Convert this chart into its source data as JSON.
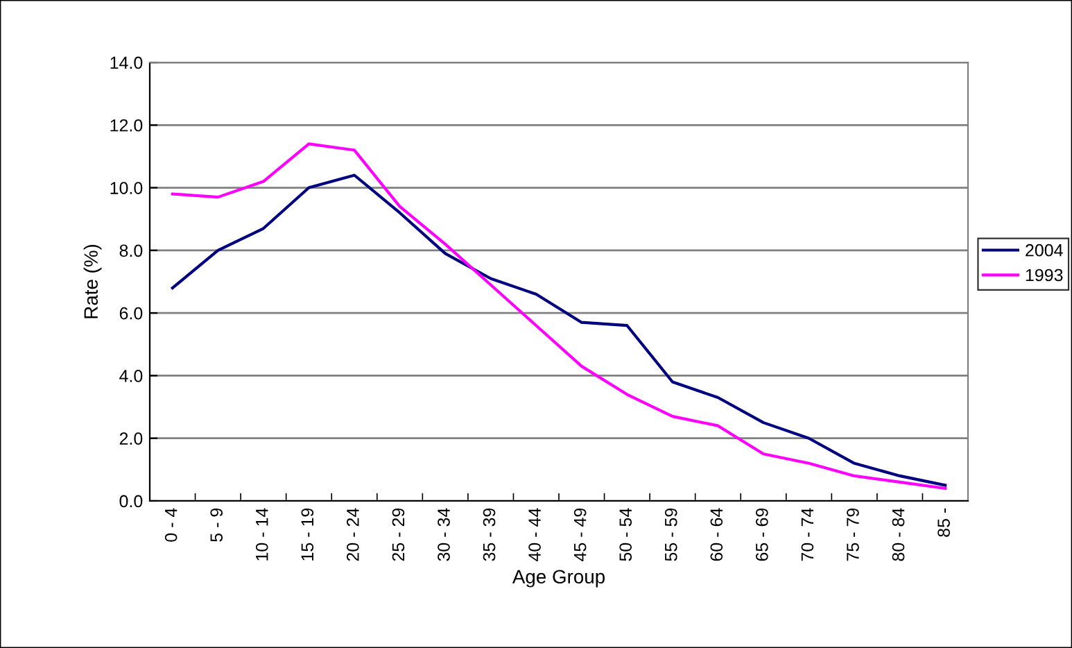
{
  "chart_data": {
    "type": "line",
    "xlabel": "Age Group",
    "ylabel": "Rate (%)",
    "categories": [
      "0 - 4",
      "5 - 9",
      "10 - 14",
      "15 - 19",
      "20 - 24",
      "25 - 29",
      "30 - 34",
      "35 - 39",
      "40 - 44",
      "45 - 49",
      "50 - 54",
      "55 - 59",
      "60 - 64",
      "65 - 69",
      "70 - 74",
      "75 - 79",
      "80 - 84",
      "85 -"
    ],
    "series": [
      {
        "name": "2004",
        "color": "#000080",
        "values": [
          6.8,
          8.0,
          8.7,
          10.0,
          10.4,
          9.2,
          7.9,
          7.1,
          6.6,
          5.7,
          5.6,
          3.8,
          3.3,
          2.5,
          2.0,
          1.2,
          0.8,
          0.5
        ]
      },
      {
        "name": "1993",
        "color": "#ff00ff",
        "values": [
          9.8,
          9.7,
          10.2,
          11.4,
          11.2,
          9.4,
          8.2,
          6.9,
          5.6,
          4.3,
          3.4,
          2.7,
          2.4,
          1.5,
          1.2,
          0.8,
          0.6,
          0.4
        ]
      }
    ],
    "ylim": [
      0,
      14
    ],
    "yticks": [
      {
        "value": 0,
        "label": "0.0"
      },
      {
        "value": 2,
        "label": "2.0"
      },
      {
        "value": 4,
        "label": "4.0"
      },
      {
        "value": 6,
        "label": "6.0"
      },
      {
        "value": 8,
        "label": "8.0"
      },
      {
        "value": 10,
        "label": "10.0"
      },
      {
        "value": 12,
        "label": "12.0"
      },
      {
        "value": 14,
        "label": "14.0"
      }
    ],
    "grid": "y",
    "legend": "right",
    "marker": "none",
    "line_style": "solid"
  }
}
